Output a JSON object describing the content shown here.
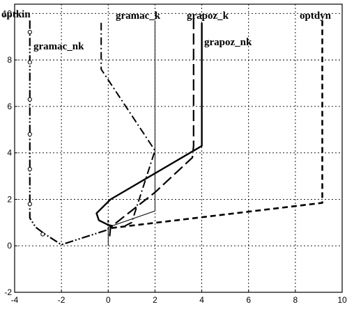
{
  "chart_data": {
    "type": "line",
    "title": "",
    "xlabel": "",
    "ylabel": "",
    "xlim": [
      -4,
      10
    ],
    "ylim": [
      -2,
      10.4
    ],
    "xticks": [
      -4,
      -2,
      0,
      2,
      4,
      6,
      8,
      10
    ],
    "yticks": [
      -2,
      0,
      2,
      4,
      6,
      8,
      10
    ],
    "grid": true,
    "grid_style": "dotted",
    "series": [
      {
        "name": "optkin",
        "style": "dash-dot-dot",
        "marker": "circle-open",
        "points": [
          [
            -3.35,
            9.7
          ],
          [
            -3.35,
            1.2
          ],
          [
            -3.1,
            0.8
          ],
          [
            -2.7,
            0.5
          ],
          [
            -2.0,
            0.05
          ],
          [
            0.0,
            0.7
          ],
          [
            0.0,
            1.1
          ]
        ],
        "markers": [
          [
            -3.35,
            9.2
          ],
          [
            -3.35,
            7.9
          ],
          [
            -3.35,
            6.3
          ],
          [
            -3.35,
            4.8
          ],
          [
            -3.35,
            3.3
          ],
          [
            -3.35,
            1.8
          ],
          [
            -2.8,
            0.5
          ]
        ]
      },
      {
        "name": "gramac_nk",
        "style": "dash-dot",
        "points": [
          [
            -0.3,
            9.6
          ],
          [
            -0.3,
            7.6
          ],
          [
            2.0,
            4.1
          ],
          [
            1.0,
            1.0
          ],
          [
            0.6,
            0.8
          ]
        ]
      },
      {
        "name": "gramac_k",
        "style": "solid-thin",
        "points": [
          [
            2.0,
            9.7
          ],
          [
            2.0,
            1.5
          ],
          [
            0.0,
            0.8
          ],
          [
            0.0,
            0.0
          ]
        ]
      },
      {
        "name": "grapoz_k",
        "style": "long-dash",
        "points": [
          [
            3.65,
            9.8
          ],
          [
            3.65,
            4.3
          ],
          [
            3.6,
            3.8
          ],
          [
            2.0,
            2.3
          ],
          [
            0.1,
            0.8
          ],
          [
            0.05,
            0.3
          ]
        ]
      },
      {
        "name": "grapoz_nk",
        "style": "solid-thick",
        "points": [
          [
            4.0,
            9.6
          ],
          [
            4.0,
            4.3
          ],
          [
            0.1,
            2.0
          ],
          [
            -0.5,
            1.4
          ],
          [
            -0.4,
            1.1
          ],
          [
            0.0,
            0.9
          ],
          [
            0.2,
            0.85
          ]
        ]
      },
      {
        "name": "optdyn",
        "style": "dashed",
        "points": [
          [
            9.15,
            9.7
          ],
          [
            9.15,
            1.85
          ],
          [
            0.0,
            0.75
          ]
        ]
      }
    ],
    "labels": [
      {
        "text": "optkin",
        "series": "optkin"
      },
      {
        "text": "gramac_nk",
        "series": "gramac_nk"
      },
      {
        "text": "gramac_k",
        "series": "gramac_k"
      },
      {
        "text": "grapoz_k",
        "series": "grapoz_k"
      },
      {
        "text": "grapoz_nk",
        "series": "grapoz_nk"
      },
      {
        "text": "optdyn",
        "series": "optdyn"
      }
    ]
  }
}
